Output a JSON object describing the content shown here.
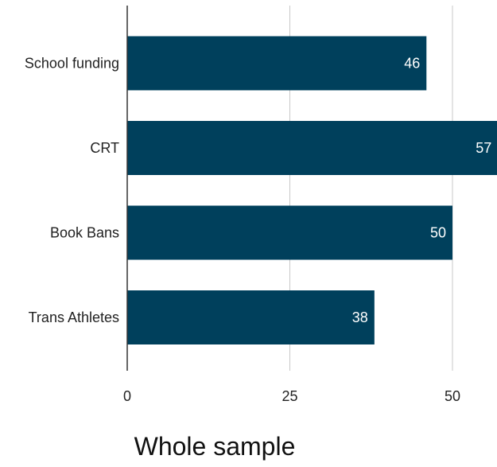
{
  "chart_data": {
    "type": "bar",
    "orientation": "horizontal",
    "title": "Whole sample",
    "categories": [
      "School funding",
      "CRT",
      "Book Bans",
      "Trans Athletes"
    ],
    "values": [
      46,
      57,
      50,
      38
    ],
    "data_labels": [
      "46",
      "57",
      "50",
      "38"
    ],
    "xlim": [
      0,
      57
    ],
    "x_ticks": [
      0,
      25,
      50
    ],
    "x_tick_labels": [
      "0",
      "25",
      "50"
    ],
    "xlabel": "",
    "ylabel": "",
    "grid": "vertical",
    "legend": "none",
    "colors": {
      "bar": "#00405C",
      "grid": "#c8c8c8",
      "axis": "#333333",
      "data_label": "#ffffff"
    }
  }
}
